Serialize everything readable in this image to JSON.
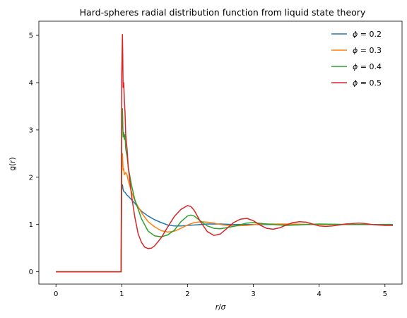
{
  "chart_data": {
    "type": "line",
    "title": "Hard-spheres radial distribution function from liquid state theory",
    "xlabel": "r/σ",
    "ylabel": "g(r)",
    "xlim": [
      -0.26,
      5.26
    ],
    "ylim": [
      -0.26,
      5.3
    ],
    "xticks": [
      0,
      1,
      2,
      3,
      4,
      5
    ],
    "yticks": [
      0,
      1,
      2,
      3,
      4,
      5
    ],
    "grid": false,
    "legend": {
      "placement": "top-right",
      "frame": false
    },
    "series": [
      {
        "name": "ϕ = 0.2",
        "legend_prefix": "ϕ",
        "legend_suffix": " = 0.2",
        "color": "#1f77b4",
        "x": [
          0,
          0.99,
          1.0,
          1.01,
          1.02,
          1.03,
          1.05,
          1.08,
          1.1,
          1.15,
          1.2,
          1.25,
          1.3,
          1.4,
          1.5,
          1.6,
          1.7,
          1.8,
          1.9,
          2.0,
          2.1,
          2.2,
          2.3,
          2.5,
          2.7,
          3.0,
          3.5,
          4.0,
          4.5,
          5.12
        ],
        "y": [
          0,
          0,
          1.77,
          1.84,
          1.74,
          1.7,
          1.68,
          1.62,
          1.6,
          1.52,
          1.45,
          1.36,
          1.28,
          1.18,
          1.1,
          1.04,
          0.99,
          0.97,
          0.97,
          0.98,
          0.99,
          1.0,
          1.01,
          1.01,
          1.0,
          1.0,
          1.0,
          1.0,
          1.0,
          1.0
        ]
      },
      {
        "name": "ϕ = 0.3",
        "legend_prefix": "ϕ",
        "legend_suffix": " = 0.3",
        "color": "#ff7f0e",
        "x": [
          0,
          0.99,
          1.0,
          1.01,
          1.02,
          1.03,
          1.04,
          1.06,
          1.08,
          1.1,
          1.15,
          1.2,
          1.3,
          1.4,
          1.5,
          1.6,
          1.7,
          1.8,
          1.9,
          2.0,
          2.1,
          2.2,
          2.3,
          2.4,
          2.5,
          2.7,
          2.9,
          3.1,
          3.5,
          4.0,
          4.5,
          5.12
        ],
        "y": [
          0,
          0,
          2.2,
          2.5,
          2.15,
          2.18,
          2.05,
          2.1,
          2.05,
          1.92,
          1.68,
          1.5,
          1.25,
          1.06,
          0.95,
          0.87,
          0.84,
          0.86,
          0.92,
          0.99,
          1.04,
          1.06,
          1.05,
          1.03,
          1.0,
          0.97,
          0.98,
          1.01,
          1.01,
          1.0,
          1.0,
          1.0
        ]
      },
      {
        "name": "ϕ = 0.4",
        "legend_prefix": "ϕ",
        "legend_suffix": " = 0.4",
        "color": "#2ca02c",
        "x": [
          0,
          0.99,
          1.0,
          1.01,
          1.02,
          1.03,
          1.04,
          1.05,
          1.06,
          1.08,
          1.1,
          1.15,
          1.2,
          1.3,
          1.4,
          1.5,
          1.6,
          1.7,
          1.8,
          1.9,
          2.0,
          2.05,
          2.1,
          2.2,
          2.3,
          2.4,
          2.5,
          2.7,
          2.9,
          3.0,
          3.2,
          3.5,
          3.8,
          4.0,
          4.5,
          5.12
        ],
        "y": [
          0,
          0,
          3.0,
          3.45,
          2.85,
          2.95,
          2.8,
          2.9,
          2.6,
          2.45,
          2.2,
          1.82,
          1.52,
          1.12,
          0.86,
          0.76,
          0.74,
          0.78,
          0.88,
          1.06,
          1.18,
          1.2,
          1.18,
          1.07,
          0.97,
          0.92,
          0.91,
          0.96,
          1.03,
          1.04,
          1.01,
          0.98,
          1.0,
          1.01,
          1.0,
          1.0
        ]
      },
      {
        "name": "ϕ = 0.5",
        "legend_prefix": "ϕ",
        "legend_suffix": " = 0.5",
        "color": "#d62728",
        "x": [
          0,
          0.99,
          1.0,
          1.01,
          1.015,
          1.02,
          1.03,
          1.04,
          1.05,
          1.06,
          1.08,
          1.1,
          1.15,
          1.2,
          1.25,
          1.3,
          1.35,
          1.4,
          1.45,
          1.5,
          1.6,
          1.7,
          1.8,
          1.9,
          2.0,
          2.05,
          2.1,
          2.2,
          2.3,
          2.4,
          2.5,
          2.6,
          2.7,
          2.8,
          2.9,
          3.0,
          3.1,
          3.2,
          3.3,
          3.4,
          3.5,
          3.6,
          3.7,
          3.8,
          3.9,
          4.0,
          4.1,
          4.2,
          4.3,
          4.4,
          4.5,
          4.6,
          4.7,
          4.8,
          4.9,
          5.0,
          5.12
        ],
        "y": [
          0,
          0,
          4.2,
          5.02,
          4.6,
          3.9,
          4.0,
          3.6,
          3.35,
          2.9,
          2.6,
          2.2,
          1.6,
          1.15,
          0.8,
          0.62,
          0.52,
          0.49,
          0.5,
          0.55,
          0.72,
          0.95,
          1.17,
          1.32,
          1.4,
          1.38,
          1.3,
          1.05,
          0.85,
          0.77,
          0.8,
          0.92,
          1.04,
          1.11,
          1.13,
          1.08,
          0.99,
          0.92,
          0.9,
          0.93,
          0.99,
          1.04,
          1.06,
          1.05,
          1.01,
          0.97,
          0.96,
          0.97,
          0.99,
          1.01,
          1.02,
          1.03,
          1.02,
          1.0,
          0.99,
          0.98,
          0.98
        ]
      }
    ]
  }
}
